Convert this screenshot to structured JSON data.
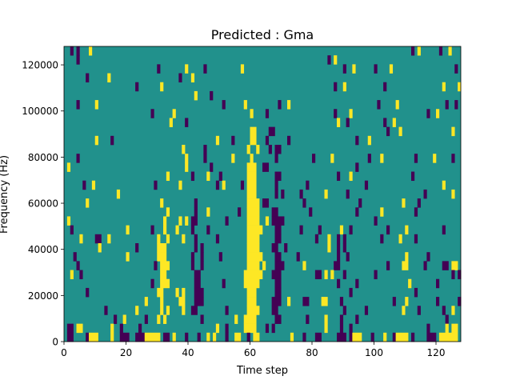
{
  "chart_data": {
    "type": "heatmap",
    "title": "Predicted : Gma",
    "xlabel": "Time step",
    "ylabel": "Frequency (Hz)",
    "xlim": [
      0,
      128
    ],
    "ylim": [
      0,
      128000
    ],
    "xticks": [
      0,
      20,
      40,
      60,
      80,
      100,
      120
    ],
    "xtick_labels": [
      "0",
      "20",
      "40",
      "60",
      "80",
      "100",
      "120"
    ],
    "yticks": [
      0,
      20000,
      40000,
      60000,
      80000,
      100000,
      120000
    ],
    "ytick_labels": [
      "0",
      "20000",
      "40000",
      "60000",
      "80000",
      "100000",
      "120000"
    ],
    "n_rows": 33,
    "n_cols": 128,
    "background_value": 0.5,
    "colors": {
      "0": "#440154",
      "0.5": "#21918c",
      "1": "#fde725"
    },
    "rows_top_to_bottom": [
      [
        "p:2",
        "p:4",
        "y:8",
        "p:112",
        "y:114",
        "p:121",
        "y:124"
      ],
      [
        "p:4",
        "p:85",
        "y:87"
      ],
      [
        "p:30",
        "y:39",
        "p:45",
        "y:57",
        "p:90",
        "y:93",
        "p:100",
        "y:105",
        "p:126"
      ],
      [
        "p:7",
        "y:14",
        "p:37",
        "y:41"
      ],
      [
        "p:23",
        "y:31",
        "p:87",
        "y:90",
        "p:103",
        "y:122",
        "y:127"
      ],
      [
        "y:42",
        "p:47"
      ],
      [
        "p:4",
        "y:10",
        "p:51",
        "y:58",
        "p:69",
        "y:72",
        "p:101",
        "y:107",
        "p:123",
        "p:126"
      ],
      [
        "p:28",
        "y:35",
        "y:60",
        "p:65",
        "p:87",
        "y:92",
        "p:117",
        "y:120"
      ],
      [
        "y:34",
        "p:39",
        "y:88",
        "p:91",
        "p:103",
        "y:106"
      ],
      [
        "y:60-61",
        "p:66-67",
        "p:104",
        "y:108",
        "y:125"
      ],
      [
        "y:10",
        "p:15",
        "y:49",
        "p:54",
        "y:60-61",
        "p:65",
        "p:72",
        "p:94",
        "y:98"
      ],
      [
        "y:38",
        "p:45",
        "y:59",
        "y:62",
        "p:66",
        "p:68-69"
      ],
      [
        "p:4",
        "y:39",
        "p:45",
        "y:54",
        "y:60",
        "p:68",
        "p:80",
        "y:86",
        "p:98",
        "y:102",
        "p:113",
        "y:119",
        "p:125"
      ],
      [
        "y:1",
        "y:39",
        "p:47",
        "y:59-61",
        "p:64-65",
        "p:94"
      ],
      [
        "y:33",
        "p:41",
        "y:46",
        "p:50",
        "y:59-61",
        "p:68-69",
        "p:88",
        "y:92",
        "p:112"
      ],
      [
        "p:6",
        "y:9",
        "p:29",
        "y:37",
        "p:49",
        "y:51",
        "p:57",
        "y:59-61",
        "p:68",
        "p:78",
        "p:97",
        "y:122"
      ],
      [
        "y:17",
        "y:59-61",
        "p:68",
        "p:70",
        "p:76",
        "y:84",
        "p:91",
        "p:116",
        "y:125"
      ],
      [
        "y:7",
        "y:31",
        "p:42",
        "y:59-62",
        "p:64-65",
        "p:77",
        "p:95",
        "y:109",
        "p:114"
      ],
      [
        "y:33",
        "p:42",
        "y:46",
        "p:56",
        "y:59-62",
        "p:67-68",
        "p:79",
        "p:94",
        "y:102",
        "p:113"
      ],
      [
        "y:1",
        "y:32",
        "y:37",
        "y:39",
        "p:41-42",
        "p:52",
        "y:59-62",
        "y:65",
        "p:67-70",
        "p:100"
      ],
      [
        "p:2",
        "y:20",
        "p:28",
        "y:32",
        "y:36",
        "p:41",
        "p:46",
        "y:59-63",
        "p:68-69",
        "p:76",
        "p:82",
        "y:89",
        "p:92",
        "p:104",
        "y:110",
        "p:122"
      ],
      [
        "y:5",
        "p:10-11",
        "y:14",
        "y:30",
        "y:33",
        "y:38",
        "p:42",
        "p:49",
        "y:59-62",
        "p:68-69",
        "p:81",
        "y:85",
        "p:88",
        "p:90",
        "p:102",
        "y:108",
        "p:113"
      ],
      [
        "y:11",
        "p:23",
        "y:30-32",
        "p:42",
        "p:44",
        "y:59-62",
        "p:67-68",
        "p:71",
        "y:85",
        "p:88",
        "p:90"
      ],
      [
        "p:3",
        "y:20",
        "y:30-32",
        "p:41",
        "p:44",
        "p:50",
        "y:59-63",
        "p:68-69",
        "p:75",
        "p:88",
        "p:91",
        "y:110",
        "p:117"
      ],
      [
        "p:4",
        "p:29",
        "y:31-33",
        "p:41",
        "p:44",
        "y:59-62",
        "y:64",
        "p:68-70",
        "y:77",
        "p:87-88",
        "p:104",
        "y:109-110",
        "p:116",
        "p:122-123",
        "y:125-126"
      ],
      [
        "y:2",
        "p:5",
        "y:31-32",
        "p:42-43",
        "y:58-63",
        "p:67-69",
        "p:81-82",
        "y:84",
        "y:86",
        "p:90",
        "p:100",
        "p:125",
        "p:127"
      ],
      [
        "p:28",
        "y:31-33",
        "p:42-43",
        "p:51",
        "y:58-62",
        "p:68-69",
        "p:88",
        "p:94",
        "y:111",
        "p:120"
      ],
      [
        "p:7",
        "y:30-31",
        "y:36",
        "y:38",
        "p:42-44",
        "y:59-61",
        "p:68-69",
        "p:92",
        "p:113"
      ],
      [
        "y:26",
        "y:31",
        "y:37-38",
        "p:42-44",
        "y:59-61",
        "p:67-69",
        "y:72",
        "p:77-78",
        "y:83-84",
        "p:89",
        "p:106",
        "y:110",
        "p:120",
        "p:127"
      ],
      [
        "p:13",
        "y:23",
        "y:31",
        "y:33",
        "y:38",
        "p:41-42",
        "p:52",
        "y:59-62",
        "p:67-68",
        "p:90",
        "p:97",
        "y:109",
        "p:114",
        "p:122",
        "y:125"
      ],
      [
        "p:16",
        "y:19",
        "p:26",
        "y:30",
        "y:32",
        "p:44",
        "y:55",
        "y:58-61",
        "p:68-69",
        "p:78",
        "y:84",
        "p:89",
        "p:94",
        "p:123"
      ],
      [
        "p:1-2",
        "y:4-5",
        "y:15",
        "p:18",
        "p:24",
        "y:49",
        "p:52",
        "y:58-61",
        "p:65",
        "p:67",
        "y:84",
        "p:89",
        "p:92",
        "p:117",
        "y:123",
        "y:125-126"
      ],
      [
        "p:1-2",
        "p:7",
        "y:8-10",
        "y:15",
        "p:18-20",
        "p:23-25",
        "y:26-30",
        "p:32-33",
        "y:35",
        "p:39",
        "p:43",
        "y:46",
        "y:48",
        "p:52",
        "y:55-56",
        "p:59",
        "y:61-62",
        "y:73",
        "p:77",
        "p:81-82",
        "p:88-90",
        "p:92",
        "y:93-95",
        "p:99",
        "y:103",
        "p:106",
        "y:107-110",
        "p:112",
        "p:117-119",
        "y:121-123",
        "y:124-126"
      ]
    ]
  }
}
